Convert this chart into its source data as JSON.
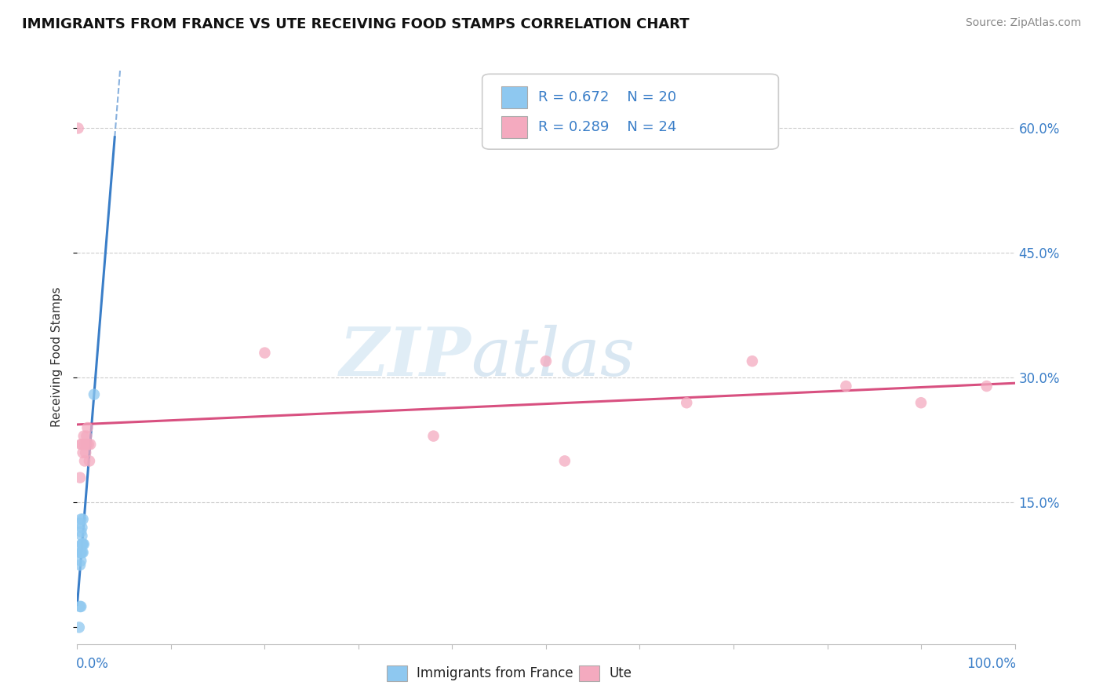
{
  "title": "IMMIGRANTS FROM FRANCE VS UTE RECEIVING FOOD STAMPS CORRELATION CHART",
  "source": "Source: ZipAtlas.com",
  "ylabel": "Receiving Food Stamps",
  "xmin": 0.0,
  "xmax": 1.0,
  "ymin": -0.02,
  "ymax": 0.67,
  "ytick_vals": [
    0.0,
    0.15,
    0.3,
    0.45,
    0.6
  ],
  "ytick_labels": [
    "",
    "15.0%",
    "30.0%",
    "45.0%",
    "60.0%"
  ],
  "color_blue": "#8EC8F0",
  "color_pink": "#F4AABF",
  "color_blue_line": "#3A7EC8",
  "color_pink_line": "#D85080",
  "france_x": [
    0.002,
    0.003,
    0.004,
    0.003,
    0.004,
    0.003,
    0.004,
    0.005,
    0.005,
    0.005,
    0.006,
    0.006,
    0.007,
    0.005,
    0.004,
    0.005,
    0.003,
    0.004,
    0.006,
    0.018
  ],
  "france_y": [
    0.0,
    0.025,
    0.025,
    0.075,
    0.08,
    0.09,
    0.09,
    0.09,
    0.1,
    0.1,
    0.09,
    0.1,
    0.1,
    0.11,
    0.115,
    0.12,
    0.125,
    0.13,
    0.13,
    0.28
  ],
  "ute_x": [
    0.001,
    0.003,
    0.004,
    0.005,
    0.006,
    0.007,
    0.008,
    0.008,
    0.009,
    0.01,
    0.01,
    0.011,
    0.012,
    0.013,
    0.014,
    0.2,
    0.38,
    0.5,
    0.65,
    0.72,
    0.82,
    0.9,
    0.97,
    0.52
  ],
  "ute_y": [
    0.6,
    0.18,
    0.22,
    0.22,
    0.21,
    0.23,
    0.2,
    0.22,
    0.21,
    0.22,
    0.23,
    0.24,
    0.22,
    0.2,
    0.22,
    0.33,
    0.23,
    0.32,
    0.27,
    0.32,
    0.29,
    0.27,
    0.29,
    0.2
  ]
}
